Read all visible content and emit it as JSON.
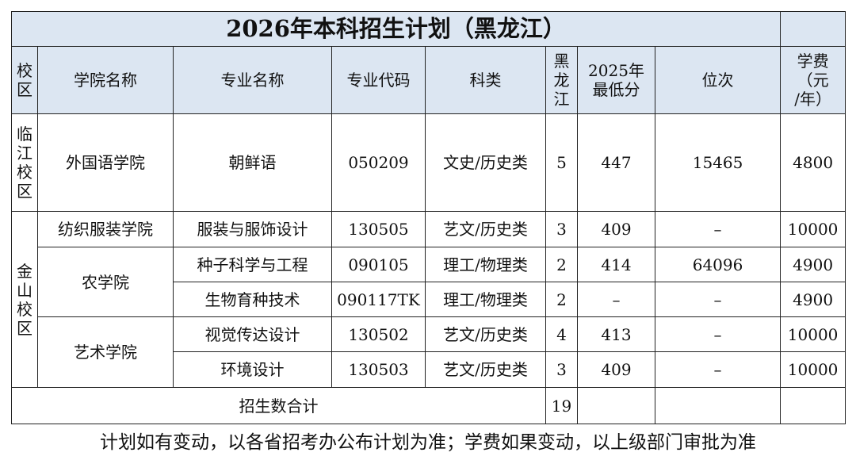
{
  "title": "2026年本科招生计划（黑龙江）",
  "header": [
    [
      "校",
      "区"
    ],
    "学院名称",
    "专业名称",
    "专业代码",
    "科类",
    [
      "黑",
      "龙",
      "江"
    ],
    [
      "2025年",
      "最低分"
    ],
    "位次",
    [
      "学费",
      "（元",
      "/年）"
    ]
  ],
  "campuses": [
    {
      "name": "临江校区",
      "colleges": [
        {
          "name": "外国语学院",
          "majors": [
            {
              "major": "朝鲜语",
              "code": "050209",
              "category": "文史/历史类",
              "quota": 5,
              "min_score": 447,
              "rank": 15465,
              "fee": 4800
            }
          ]
        }
      ]
    },
    {
      "name": "金山校区",
      "colleges": [
        {
          "name": "纺织服装学院",
          "majors": [
            {
              "major": "服装与服饰设计",
              "code": "130505",
              "category": "艺文/历史类",
              "quota": 3,
              "min_score": 409,
              "rank": "–",
              "fee": 10000
            }
          ]
        },
        {
          "name": "农学院",
          "majors": [
            {
              "major": "种子科学与工程",
              "code": "090105",
              "category": "理工/物理类",
              "quota": 2,
              "min_score": 414,
              "rank": 64096,
              "fee": 4900
            },
            {
              "major": "生物育种技术",
              "code": "090117TK",
              "category": "理工/物理类",
              "quota": 2,
              "min_score": "–",
              "rank": "–",
              "fee": 4900
            }
          ]
        },
        {
          "name": "艺术学院",
          "majors": [
            {
              "major": "视觉传达设计",
              "code": "130502",
              "category": "艺文/历史类",
              "quota": 4,
              "min_score": 413,
              "rank": "–",
              "fee": 10000
            },
            {
              "major": "环境设计",
              "code": "130503",
              "category": "艺文/历史类",
              "quota": 3,
              "min_score": 409,
              "rank": "–",
              "fee": 10000
            }
          ]
        }
      ]
    }
  ],
  "total": {
    "label": "招生数合计",
    "quota": 19
  },
  "footnote": "计划如有变动，以各省招考办公布计划为准；学费如果变动，以上级部门审批为准"
}
